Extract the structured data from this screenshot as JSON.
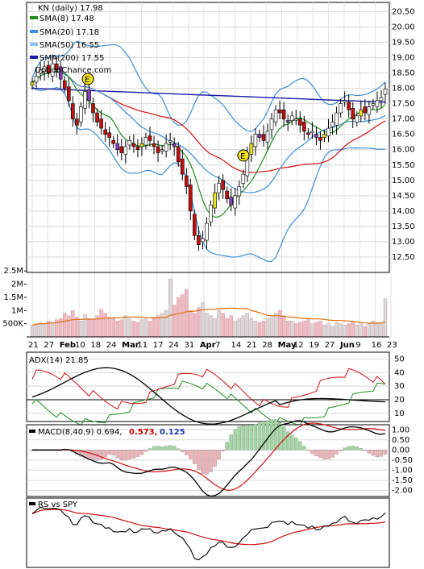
{
  "title": "KN (daily) 17.98",
  "watermark": "OptionChance.com",
  "legend": [
    {
      "label": "SMA(8) 17.48",
      "color": "#1f8f1f"
    },
    {
      "label": "SMA(20) 17.18",
      "color": "#3a8fd8"
    },
    {
      "label": "SMA(50) 16.55",
      "color": "#8fc4f0"
    },
    {
      "label": "SMA(200) 17.55",
      "color": "#1a1aa6"
    }
  ],
  "x_ticks": [
    "21",
    "27",
    "Feb",
    "10",
    "18",
    "24",
    "Mar",
    "11",
    "17",
    "24",
    "31",
    "Apr",
    "7",
    "14",
    "21",
    "28",
    "May",
    "12",
    "19",
    "27",
    "Jun",
    "9",
    "16",
    "23"
  ],
  "chart_data": [
    {
      "type": "candlestick",
      "title": "KN (daily) 17.98",
      "ylim": [
        12.0,
        20.8
      ],
      "y_ticks": [
        "20.50",
        "20.00",
        "19.50",
        "19.00",
        "18.50",
        "18.00",
        "17.50",
        "17.00",
        "16.50",
        "16.00",
        "15.50",
        "15.00",
        "14.50",
        "14.00",
        "13.50",
        "13.00",
        "12.50"
      ],
      "last_close": 17.98,
      "earnings_markers": [
        "E",
        "E"
      ],
      "series": [
        {
          "name": "SMA(8) 17.48",
          "color": "#1f8f1f"
        },
        {
          "name": "SMA(20) 17.18",
          "color": "#3a8fd8"
        },
        {
          "name": "SMA(50) 16.55",
          "color": "#8fc4f0"
        },
        {
          "name": "SMA(200) 17.55",
          "color": "#1a1aa6"
        }
      ],
      "closes": [
        18.2,
        18.4,
        18.6,
        18.7,
        18.5,
        18.8,
        18.6,
        18.3,
        18.0,
        17.6,
        17.0,
        16.8,
        17.4,
        17.9,
        17.6,
        17.2,
        16.9,
        16.7,
        16.5,
        16.4,
        16.2,
        16.0,
        15.9,
        16.1,
        16.3,
        16.1,
        16.0,
        16.2,
        16.4,
        16.3,
        16.1,
        15.9,
        16.0,
        16.2,
        16.3,
        16.1,
        15.6,
        15.2,
        14.8,
        14.0,
        13.2,
        12.9,
        13.1,
        13.6,
        14.2,
        14.6,
        14.9,
        14.7,
        14.4,
        14.2,
        14.5,
        14.8,
        15.2,
        15.8,
        16.2,
        16.5,
        16.4,
        16.3,
        16.6,
        17.0,
        17.3,
        17.2,
        17.0,
        16.9,
        17.1,
        17.0,
        16.8,
        16.6,
        16.5,
        16.6,
        16.4,
        16.3,
        16.5,
        16.7,
        16.9,
        17.2,
        17.5,
        17.6,
        17.3,
        17.0,
        17.1,
        17.3,
        17.2,
        17.4,
        17.5,
        17.6,
        17.7,
        17.98
      ]
    },
    {
      "type": "bar",
      "name": "Volume",
      "y_ticks": [
        "2.5M",
        "2M",
        "1.5M",
        "1M",
        "500K"
      ],
      "values": [
        0.45,
        0.5,
        0.55,
        0.5,
        0.6,
        0.55,
        0.65,
        0.7,
        0.9,
        0.8,
        1.0,
        0.75,
        0.6,
        0.85,
        0.7,
        0.65,
        0.8,
        1.05,
        0.9,
        0.75,
        0.7,
        0.6,
        0.65,
        0.8,
        0.7,
        0.6,
        0.55,
        0.65,
        0.7,
        0.6,
        0.75,
        0.8,
        0.9,
        1.0,
        2.2,
        1.2,
        1.5,
        1.6,
        1.8,
        1.0,
        0.9,
        1.1,
        1.3,
        0.9,
        0.8,
        0.7,
        1.0,
        0.9,
        0.7,
        0.8,
        0.6,
        0.7,
        0.8,
        0.9,
        0.7,
        0.6,
        0.55,
        0.6,
        0.7,
        0.8,
        0.9,
        1.0,
        0.8,
        0.6,
        0.6,
        0.5,
        0.55,
        0.6,
        0.7,
        0.5,
        0.55,
        0.6,
        0.45,
        0.5,
        0.4,
        0.55,
        0.5,
        0.45,
        0.5,
        0.6,
        0.45,
        0.55,
        0.4,
        0.5,
        0.6,
        0.5,
        0.55,
        1.45
      ]
    },
    {
      "type": "line",
      "name": "ADX(14) 21.85",
      "y_ticks": [
        "50",
        "40",
        "30",
        "20",
        "10"
      ],
      "ylim": [
        4,
        55
      ]
    },
    {
      "type": "line",
      "name": "MACD(8,40,9)",
      "label": "MACD(8,40,9) 0.694,",
      "values_text": [
        "0.573,",
        "0.125"
      ],
      "y_ticks": [
        "1.00",
        "0.50",
        "0.00",
        "-0.50",
        "-1.00",
        "-1.50",
        "-2.00"
      ],
      "ylim": [
        -2.3,
        1.25
      ]
    },
    {
      "type": "line",
      "name": "RS vs SPY"
    }
  ]
}
